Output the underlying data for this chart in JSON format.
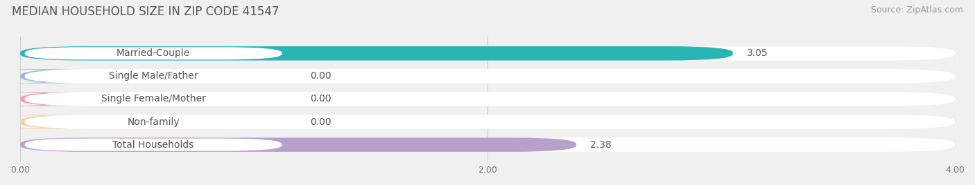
{
  "title": "MEDIAN HOUSEHOLD SIZE IN ZIP CODE 41547",
  "source": "Source: ZipAtlas.com",
  "categories": [
    "Married-Couple",
    "Single Male/Father",
    "Single Female/Mother",
    "Non-family",
    "Total Households"
  ],
  "values": [
    3.05,
    0.0,
    0.0,
    0.0,
    2.38
  ],
  "bar_colors": [
    "#29b5b5",
    "#a0b8d8",
    "#f0a0b8",
    "#f5d0a0",
    "#b8a0cc"
  ],
  "xlim": [
    0,
    4.0
  ],
  "xticks": [
    0.0,
    2.0,
    4.0
  ],
  "xtick_labels": [
    "0.00",
    "2.00",
    "4.00"
  ],
  "background_color": "#f0f0f0",
  "title_fontsize": 12,
  "source_fontsize": 9,
  "label_fontsize": 10,
  "value_fontsize": 10,
  "bar_height": 0.62,
  "fig_width": 14.06,
  "fig_height": 2.68
}
